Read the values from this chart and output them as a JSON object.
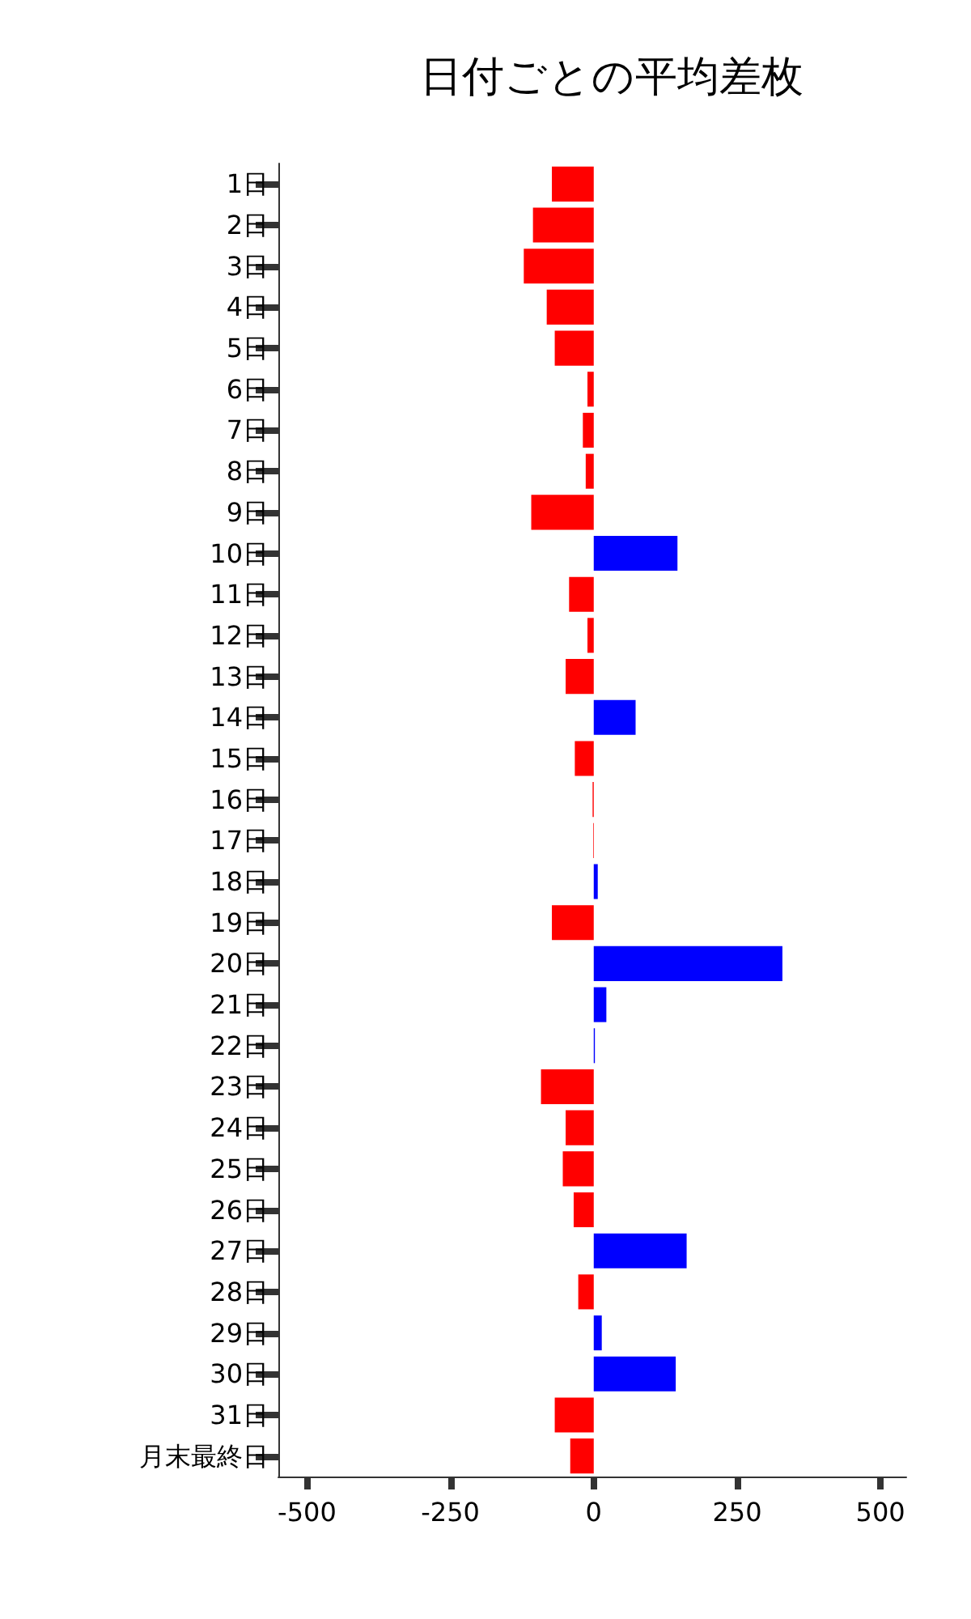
{
  "chart_data": {
    "type": "bar",
    "orientation": "horizontal",
    "title": "日付ごとの平均差枚",
    "categories": [
      "1日",
      "2日",
      "3日",
      "4日",
      "5日",
      "6日",
      "7日",
      "8日",
      "9日",
      "10日",
      "11日",
      "12日",
      "13日",
      "14日",
      "15日",
      "16日",
      "17日",
      "18日",
      "19日",
      "20日",
      "21日",
      "22日",
      "23日",
      "24日",
      "25日",
      "26日",
      "27日",
      "28日",
      "29日",
      "30日",
      "31日",
      "月末最終日"
    ],
    "values": [
      -73,
      -106,
      -122,
      -82,
      -68,
      -11,
      -19,
      -14,
      -109,
      146,
      -43,
      -11,
      -49,
      73,
      -33,
      -2,
      -1,
      7,
      -73,
      329,
      22,
      2,
      -92,
      -49,
      -54,
      -35,
      162,
      -27,
      14,
      143,
      -68,
      -41
    ],
    "colors": [
      "#ff0000",
      "#ff0000",
      "#ff0000",
      "#ff0000",
      "#ff0000",
      "#ff0000",
      "#ff0000",
      "#ff0000",
      "#ff0000",
      "#0000ff",
      "#ff0000",
      "#ff0000",
      "#ff0000",
      "#0000ff",
      "#ff0000",
      "#ff0000",
      "#ff0000",
      "#0000ff",
      "#ff0000",
      "#0000ff",
      "#0000ff",
      "#0000ff",
      "#ff0000",
      "#ff0000",
      "#ff0000",
      "#ff0000",
      "#0000ff",
      "#ff0000",
      "#0000ff",
      "#0000ff",
      "#ff0000",
      "#ff0000"
    ],
    "xlim": [
      -550,
      545
    ],
    "xticks": [
      -500,
      -250,
      0,
      250,
      500
    ],
    "grid": false
  }
}
